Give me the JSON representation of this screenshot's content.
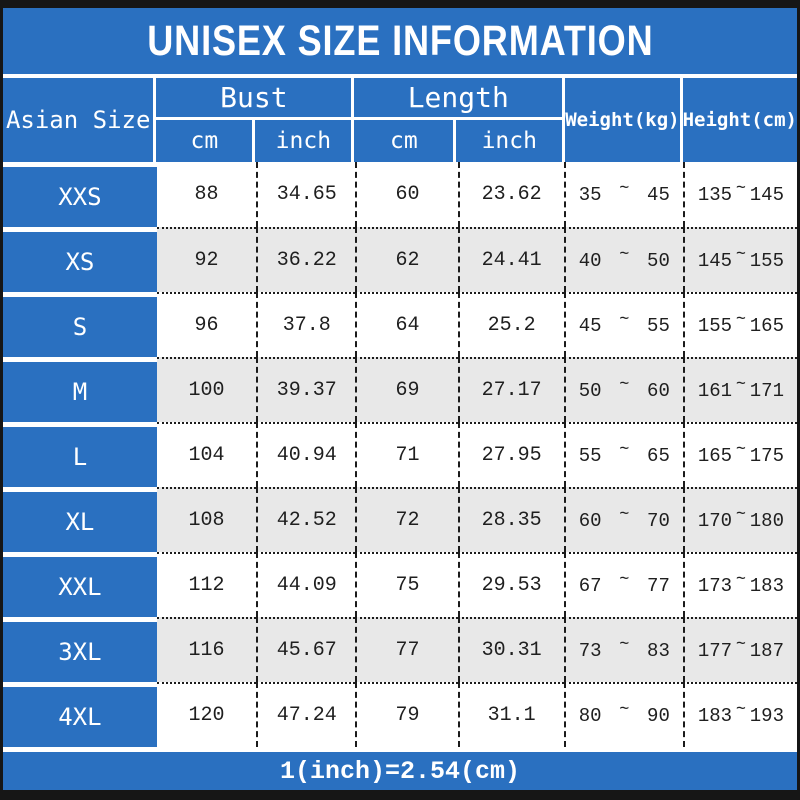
{
  "title": "UNISEX SIZE INFORMATION",
  "header": {
    "size_col": "Asian Size",
    "bust": "Bust",
    "length": "Length",
    "weight": "Weight(kg)",
    "height": "Height(cm)",
    "units": {
      "cm": "cm",
      "inch": "inch"
    }
  },
  "range_separator": "~",
  "rows": [
    {
      "size": "XXS",
      "bust_cm": "88",
      "bust_inch": "34.65",
      "len_cm": "60",
      "len_inch": "23.62",
      "weight_min": "35",
      "weight_max": "45",
      "height_min": "135",
      "height_max": "145"
    },
    {
      "size": "XS",
      "bust_cm": "92",
      "bust_inch": "36.22",
      "len_cm": "62",
      "len_inch": "24.41",
      "weight_min": "40",
      "weight_max": "50",
      "height_min": "145",
      "height_max": "155"
    },
    {
      "size": "S",
      "bust_cm": "96",
      "bust_inch": "37.8",
      "len_cm": "64",
      "len_inch": "25.2",
      "weight_min": "45",
      "weight_max": "55",
      "height_min": "155",
      "height_max": "165"
    },
    {
      "size": "M",
      "bust_cm": "100",
      "bust_inch": "39.37",
      "len_cm": "69",
      "len_inch": "27.17",
      "weight_min": "50",
      "weight_max": "60",
      "height_min": "161",
      "height_max": "171"
    },
    {
      "size": "L",
      "bust_cm": "104",
      "bust_inch": "40.94",
      "len_cm": "71",
      "len_inch": "27.95",
      "weight_min": "55",
      "weight_max": "65",
      "height_min": "165",
      "height_max": "175"
    },
    {
      "size": "XL",
      "bust_cm": "108",
      "bust_inch": "42.52",
      "len_cm": "72",
      "len_inch": "28.35",
      "weight_min": "60",
      "weight_max": "70",
      "height_min": "170",
      "height_max": "180"
    },
    {
      "size": "XXL",
      "bust_cm": "112",
      "bust_inch": "44.09",
      "len_cm": "75",
      "len_inch": "29.53",
      "weight_min": "67",
      "weight_max": "77",
      "height_min": "173",
      "height_max": "183"
    },
    {
      "size": "3XL",
      "bust_cm": "116",
      "bust_inch": "45.67",
      "len_cm": "77",
      "len_inch": "30.31",
      "weight_min": "73",
      "weight_max": "83",
      "height_min": "177",
      "height_max": "187"
    },
    {
      "size": "4XL",
      "bust_cm": "120",
      "bust_inch": "47.24",
      "len_cm": "79",
      "len_inch": "31.1",
      "weight_min": "80",
      "weight_max": "90",
      "height_min": "183",
      "height_max": "193"
    }
  ],
  "footer": "1(inch)=2.54(cm)",
  "colors": {
    "blue": "#2a70c0",
    "bar": "#161616",
    "row_alt": "#e8e8e8"
  },
  "chart_data": {
    "type": "table",
    "title": "UNISEX SIZE INFORMATION",
    "columns": [
      "Asian Size",
      "Bust cm",
      "Bust inch",
      "Length cm",
      "Length inch",
      "Weight(kg)",
      "Height(cm)"
    ],
    "rows": [
      [
        "XXS",
        88,
        34.65,
        60,
        23.62,
        "35~45",
        "135~145"
      ],
      [
        "XS",
        92,
        36.22,
        62,
        24.41,
        "40~50",
        "145~155"
      ],
      [
        "S",
        96,
        37.8,
        64,
        25.2,
        "45~55",
        "155~165"
      ],
      [
        "M",
        100,
        39.37,
        69,
        27.17,
        "50~60",
        "161~171"
      ],
      [
        "L",
        104,
        40.94,
        71,
        27.95,
        "55~65",
        "165~175"
      ],
      [
        "XL",
        108,
        42.52,
        72,
        28.35,
        "60~70",
        "170~180"
      ],
      [
        "XXL",
        112,
        44.09,
        75,
        29.53,
        "67~77",
        "173~183"
      ],
      [
        "3XL",
        116,
        45.67,
        77,
        30.31,
        "73~83",
        "177~187"
      ],
      [
        "4XL",
        120,
        47.24,
        79,
        31.1,
        "80~90",
        "183~193"
      ]
    ],
    "note": "1(inch)=2.54(cm)",
    "layout": "two-level column headers: Bust and Length each split into cm/inch; Weight and Height shown as min~max ranges"
  }
}
